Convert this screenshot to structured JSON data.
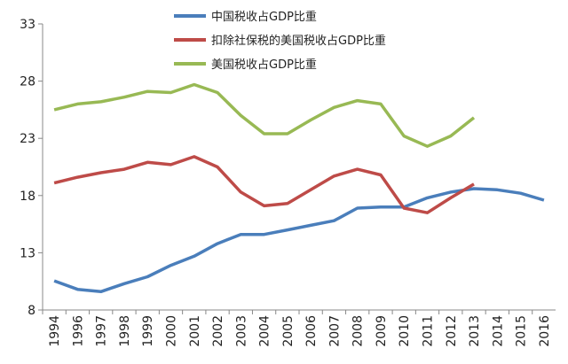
{
  "chart_data": {
    "type": "line",
    "categories": [
      "1994",
      "1996",
      "1997",
      "1998",
      "1999",
      "2000",
      "2001",
      "2002",
      "2003",
      "2004",
      "2005",
      "2006",
      "2007",
      "2008",
      "2009",
      "2010",
      "2011",
      "2012",
      "2013",
      "2014",
      "2015",
      "2016"
    ],
    "series": [
      {
        "name": "中国税收占GDP比重",
        "color": "#4a7ebb",
        "values": [
          10.55,
          9.8,
          9.6,
          10.3,
          10.9,
          11.9,
          12.7,
          13.8,
          14.6,
          14.6,
          15.0,
          15.4,
          15.8,
          16.9,
          17.0,
          17.0,
          17.8,
          18.3,
          18.6,
          18.5,
          18.2,
          17.6
        ]
      },
      {
        "name": "扣除社保税的美国税收占GDP比重",
        "color": "#be4b48",
        "values": [
          19.1,
          19.6,
          20.0,
          20.3,
          20.9,
          20.7,
          21.4,
          20.5,
          18.3,
          17.1,
          17.3,
          18.5,
          19.7,
          20.3,
          19.8,
          16.9,
          16.5,
          17.8,
          19.0,
          null,
          null,
          null
        ]
      },
      {
        "name": "美国税收占GDP比重",
        "color": "#98b954",
        "values": [
          25.5,
          26.0,
          26.2,
          26.6,
          27.1,
          27.0,
          27.7,
          27.0,
          25.0,
          23.4,
          23.4,
          24.6,
          25.7,
          26.3,
          26.0,
          23.2,
          22.3,
          23.2,
          24.8,
          null,
          null,
          null
        ]
      }
    ],
    "ylim": [
      8,
      33
    ],
    "yticks": [
      8,
      13,
      18,
      23,
      28,
      33
    ]
  }
}
